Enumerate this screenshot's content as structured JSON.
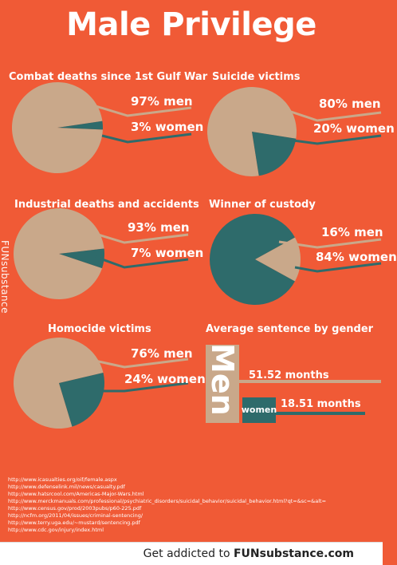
{
  "title": "Male Privilege",
  "side_watermark": "FUNsubstance",
  "colors": {
    "background": "#f05a36",
    "men": "#c9a88a",
    "women": "#2e6b6b",
    "text": "#ffffff",
    "footer": "#ffffff"
  },
  "charts": [
    {
      "title": "Combat deaths since 1st Gulf War",
      "men_label": "97% men",
      "women_label": "3% women"
    },
    {
      "title": "Suicide victims",
      "men_label": "80% men",
      "women_label": "20% women"
    },
    {
      "title": "Industrial deaths and accidents",
      "men_label": "93% men",
      "women_label": "7% women"
    },
    {
      "title": "Winner of custody",
      "men_label": "16% men",
      "women_label": "84% women"
    },
    {
      "title": "Homocide victims",
      "men_label": "76% men",
      "women_label": "24% women"
    }
  ],
  "sentence": {
    "title": "Average sentence by gender",
    "men_word": "Men",
    "women_word": "women",
    "men_value_label": "51.52 months",
    "women_value_label": "18.51 months"
  },
  "sources": [
    "http://www.icasualties.org/oif/female.aspx",
    "http://www.defenselink.mil/news/casualty.pdf",
    "http://www.hatsrcool.com/Americas-Major-Wars.html",
    "http://www.merckmanuals.com/professional/psychiatric_disorders/suicidal_behavior/suicidal_behavior.html?qt=&sc=&alt=",
    "http://www.census.gov/prod/2003pubs/p60-225.pdf",
    "http://ncfm.org/2011/04/issues/criminal-sentencing/",
    "http://www.terry.uga.edu/~mustard/sentencing.pdf",
    "http://www.cdc.gov/injury/index.html"
  ],
  "footer": {
    "prefix": "Get addicted to ",
    "brand": "FUNsubstance.com"
  },
  "chart_data": [
    {
      "type": "pie",
      "title": "Combat deaths since 1st Gulf War",
      "categories": [
        "men",
        "women"
      ],
      "values": [
        97,
        3
      ]
    },
    {
      "type": "pie",
      "title": "Suicide victims",
      "categories": [
        "men",
        "women"
      ],
      "values": [
        80,
        20
      ]
    },
    {
      "type": "pie",
      "title": "Industrial deaths and accidents",
      "categories": [
        "men",
        "women"
      ],
      "values": [
        93,
        7
      ]
    },
    {
      "type": "pie",
      "title": "Winner of custody",
      "categories": [
        "men",
        "women"
      ],
      "values": [
        16,
        84
      ]
    },
    {
      "type": "pie",
      "title": "Homocide victims",
      "categories": [
        "men",
        "women"
      ],
      "values": [
        76,
        24
      ]
    },
    {
      "type": "bar",
      "title": "Average sentence by gender",
      "categories": [
        "Men",
        "women"
      ],
      "values": [
        51.52,
        18.51
      ],
      "unit": "months"
    }
  ]
}
